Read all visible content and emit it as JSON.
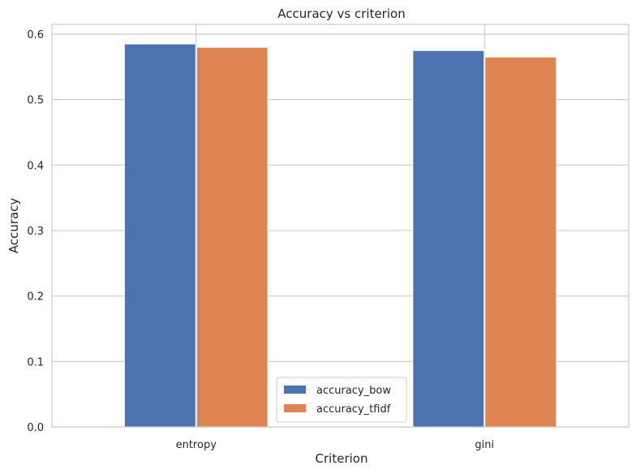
{
  "chart_data": {
    "type": "bar",
    "title": "Accuracy vs criterion",
    "xlabel": "Criterion",
    "ylabel": "Accuracy",
    "categories": [
      "entropy",
      "gini"
    ],
    "series": [
      {
        "name": "accuracy_bow",
        "color": "#4c72b0",
        "values": [
          0.585,
          0.575
        ]
      },
      {
        "name": "accuracy_tfidf",
        "color": "#dd8452",
        "values": [
          0.58,
          0.565
        ]
      }
    ],
    "ylim": [
      0,
      0.615
    ],
    "yticks": [
      0.0,
      0.1,
      0.2,
      0.3,
      0.4,
      0.5,
      0.6
    ],
    "ytick_labels": [
      "0.0",
      "0.1",
      "0.2",
      "0.3",
      "0.4",
      "0.5",
      "0.6"
    ],
    "grid": true,
    "legend_position": "lower-center"
  }
}
